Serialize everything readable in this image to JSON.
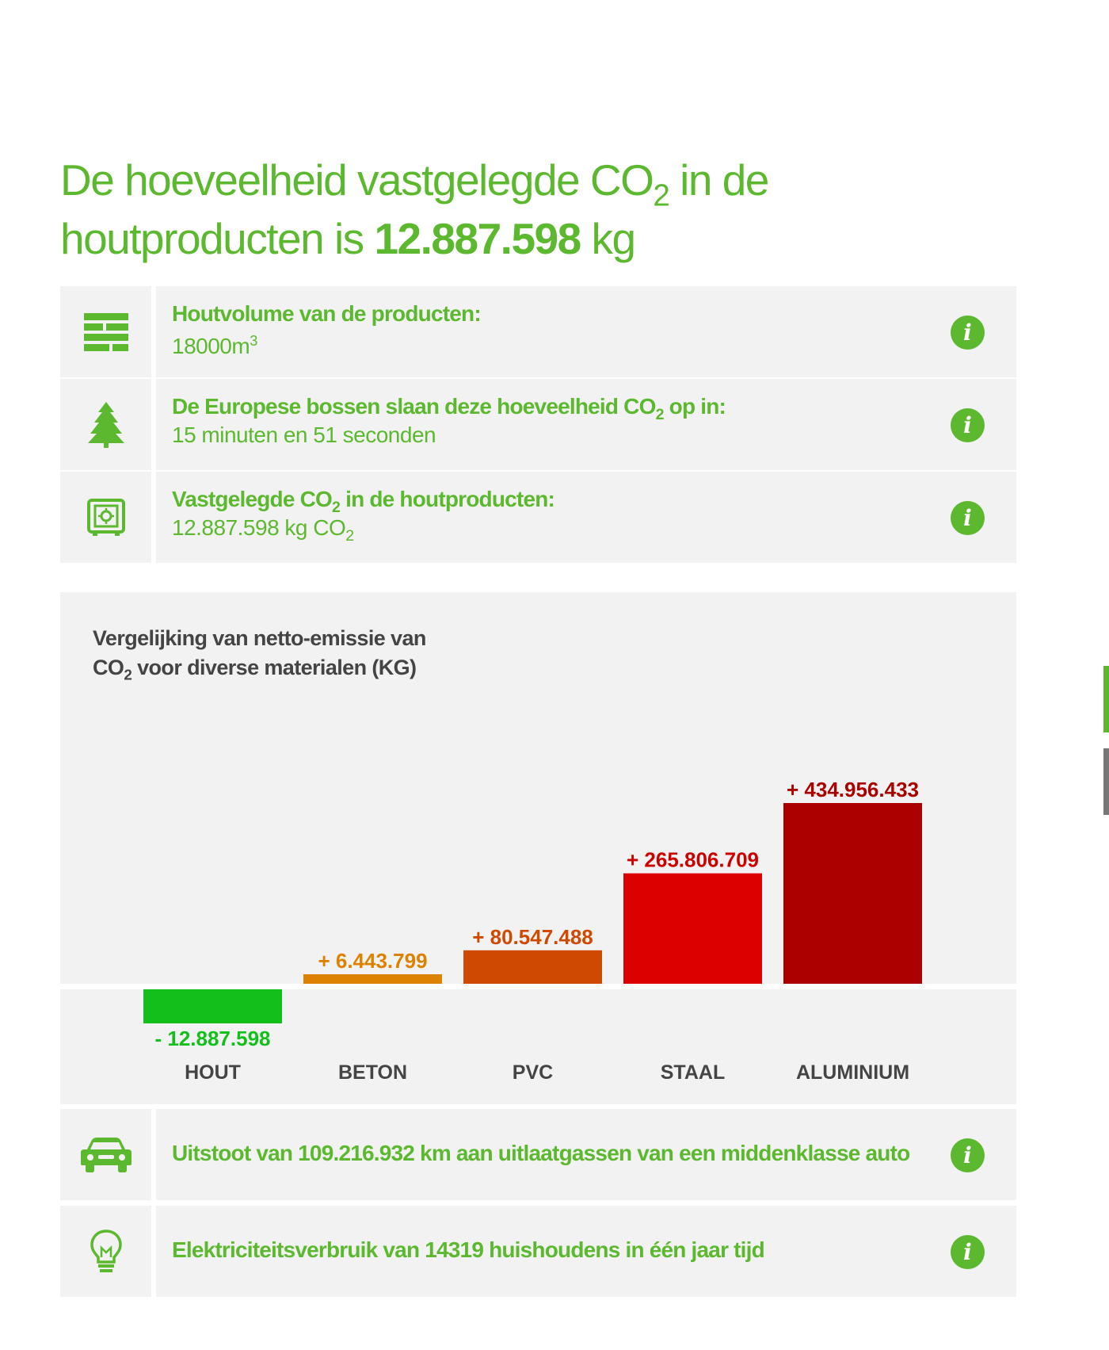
{
  "headline": {
    "part1": "De hoeveelheid vastgelegde CO",
    "sub": "2",
    "part2": " in de houtproducten is ",
    "amount": "12.887.598",
    "unit": " kg"
  },
  "rows": {
    "volume": {
      "icon": "lumber-stack-icon",
      "label": "Houtvolume van de producten:",
      "value": "18000m",
      "value_sup": "3"
    },
    "forest": {
      "icon": "pine-tree-icon",
      "label_a": "De Europese bossen slaan deze hoeveelheid CO",
      "label_sub": "2",
      "label_b": " op in:",
      "value": "15 minuten en 51 seconden"
    },
    "stored": {
      "icon": "safe-icon",
      "label_a": "Vastgelegde CO",
      "label_sub": "2",
      "label_b": " in de houtproducten:",
      "value_a": "12.887.598 kg CO",
      "value_sub": "2"
    },
    "car": {
      "icon": "car-icon",
      "label": "Uitstoot van 109.216.932 km aan uitlaatgassen van een middenklasse auto"
    },
    "electricity": {
      "icon": "lightbulb-icon",
      "label": "Elektriciteitsverbruik van 14319 huishoudens in één jaar tijd"
    }
  },
  "info_glyph": "i",
  "chart_data": {
    "type": "bar",
    "title_line1": "Vergelijking van netto-emissie van",
    "title_line2_a": "CO",
    "title_line2_sub": "2",
    "title_line2_b": " voor diverse materialen (KG)",
    "categories": [
      "HOUT",
      "BETON",
      "PVC",
      "STAAL",
      "ALUMINIUM"
    ],
    "values": [
      -12887598,
      6443799,
      80547488,
      265806709,
      434956433
    ],
    "value_labels": [
      "- 12.887.598",
      "+ 6.443.799",
      "+ 80.547.488",
      "+ 265.806.709",
      "+ 434.956.433"
    ],
    "colors": [
      "#13bf1a",
      "#dd8200",
      "#cf4900",
      "#dd0000",
      "#aa0000"
    ],
    "label_colors": [
      "#13bf1a",
      "#dd8200",
      "#cf4900",
      "#cc0000",
      "#aa0000"
    ]
  }
}
